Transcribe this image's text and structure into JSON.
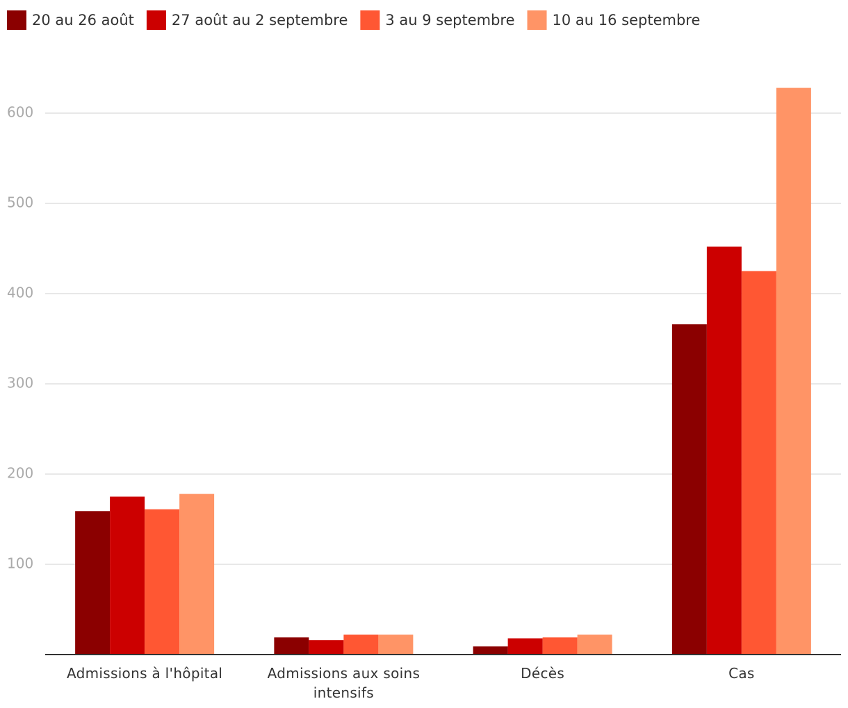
{
  "chart_data": {
    "type": "bar",
    "categories": [
      "Admissions à l'hôpital",
      "Admissions aux soins intensifs",
      "Décès",
      "Cas"
    ],
    "series": [
      {
        "name": "20 au 26 août",
        "color": "#8b0000",
        "values": [
          159,
          19,
          9,
          366
        ]
      },
      {
        "name": "27 août au 2 septembre",
        "color": "#cc0000",
        "values": [
          175,
          16,
          18,
          452
        ]
      },
      {
        "name": "3 au 9 septembre",
        "color": "#ff5733",
        "values": [
          161,
          22,
          19,
          425
        ]
      },
      {
        "name": "10 au 16 septembre",
        "color": "#ff9466",
        "values": [
          178,
          22,
          22,
          628
        ]
      }
    ],
    "ylim": [
      0,
      650
    ],
    "yticks": [
      100,
      200,
      300,
      400,
      500,
      600
    ],
    "grid": true
  }
}
